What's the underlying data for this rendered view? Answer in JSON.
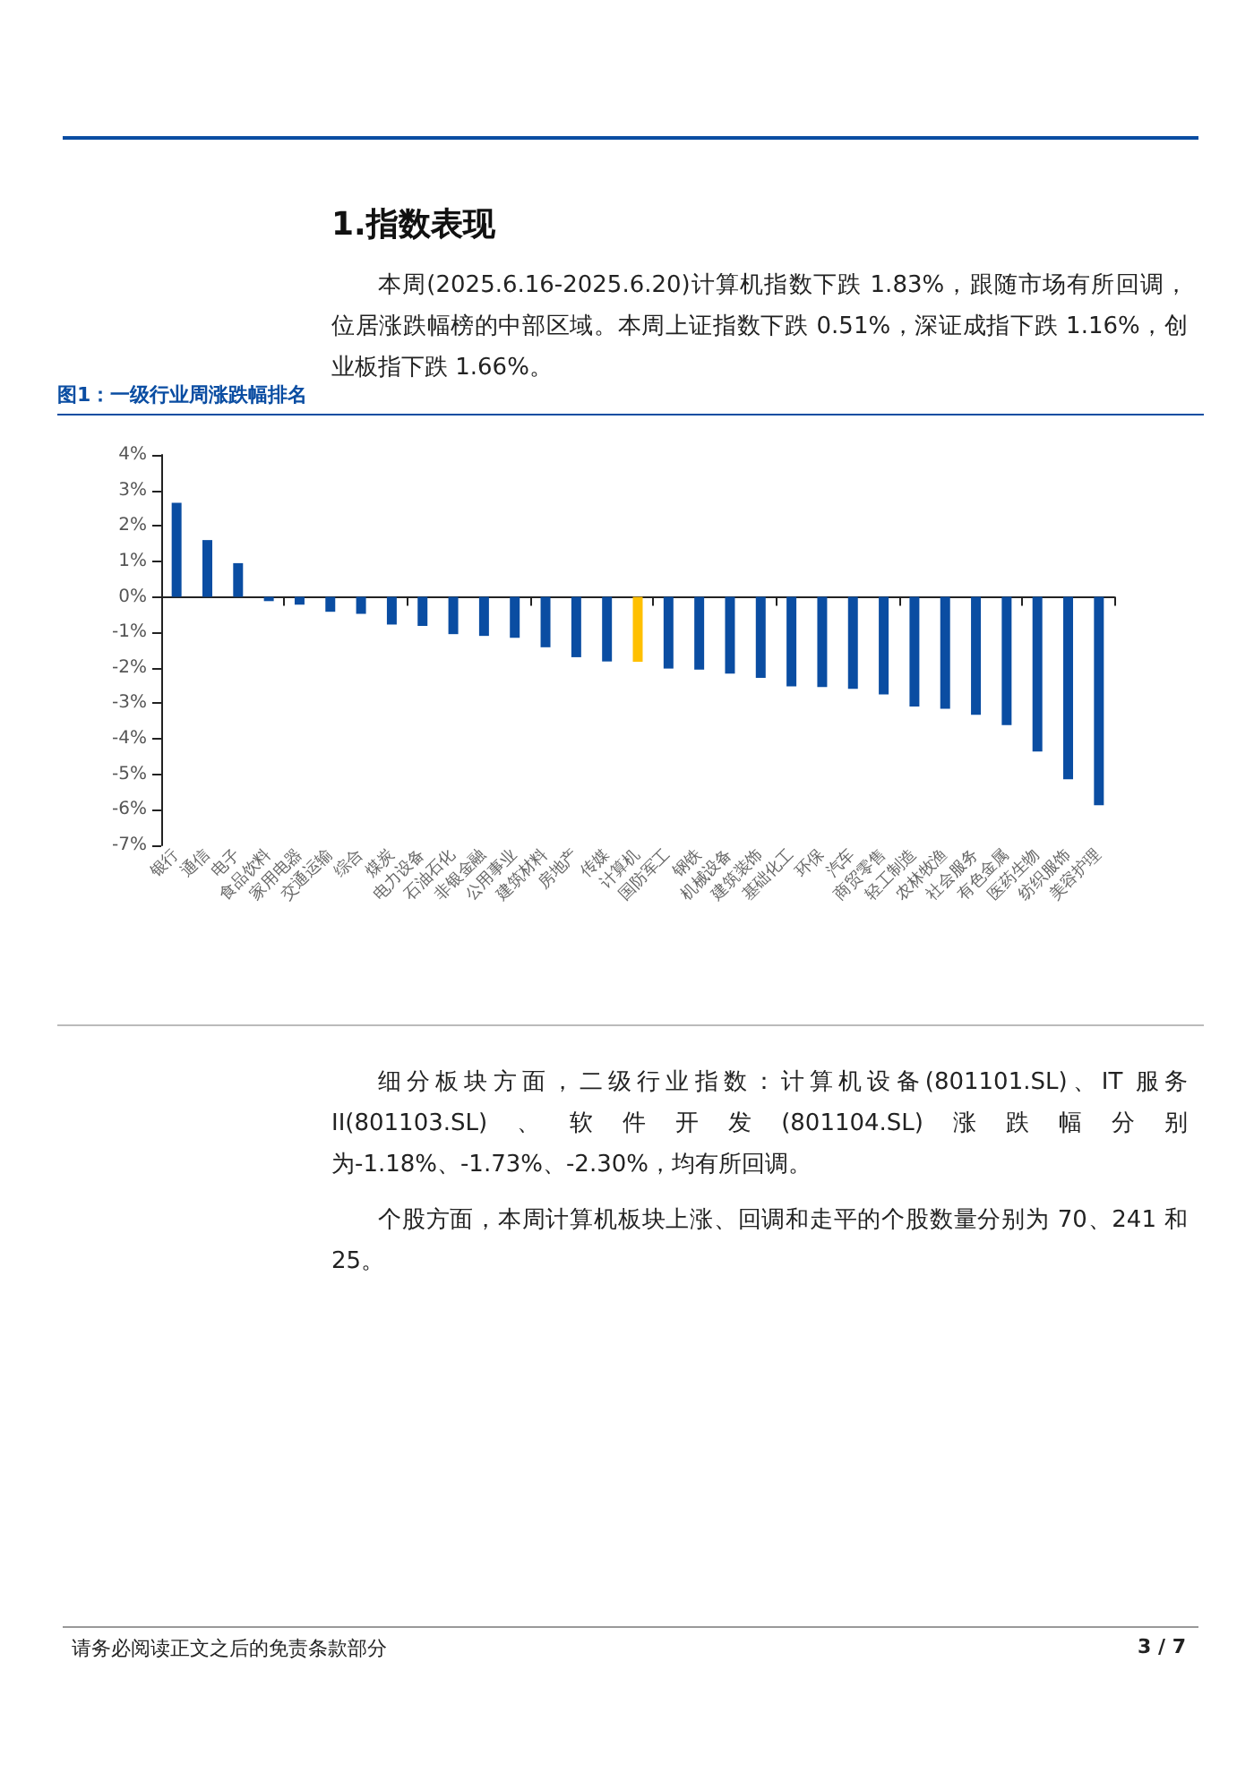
{
  "chart_data": {
    "type": "bar",
    "title": "图1：一级行业周涨跌幅排名",
    "annotations": [
      "1.指数表现",
      "本周(2025.6.16-2025.6.20)计算机指数下跌 1.83%，跟随市场有所回调，位居涨跌幅榜的中部区域。本周上证指数下跌 0.51%，深证成指下跌 1.16%，创业板指下跌 1.66%。",
      "细分板块方面，二级行业指数：计算机设备(801101.SL)、IT 服务 II(801103.SL)、软件开发(801104.SL)涨跌幅分别为-1.18%、-1.73%、-2.30%，均有所回调。",
      "个股方面，本周计算机板块上涨、回调和走平的个股数量分别为 70、241 和 25。",
      "请务必阅读正文之后的免责条款部分",
      "3 / 7"
    ],
    "categories": [
      "银行",
      "通信",
      "电子",
      "食品饮料",
      "家用电器",
      "交通运输",
      "综合",
      "煤炭",
      "电力设备",
      "石油石化",
      "非银金融",
      "公用事业",
      "建筑材料",
      "房地产",
      "传媒",
      "计算机",
      "国防军工",
      "钢铁",
      "机械设备",
      "建筑装饰",
      "基础化工",
      "环保",
      "汽车",
      "商贸零售",
      "轻工制造",
      "农林牧渔",
      "社会服务",
      "有色金属",
      "医药生物",
      "纺织服饰",
      "美容护理"
    ],
    "values": [
      2.65,
      1.6,
      0.95,
      -0.12,
      -0.22,
      -0.42,
      -0.48,
      -0.78,
      -0.82,
      -1.05,
      -1.1,
      -1.15,
      -1.42,
      -1.7,
      -1.82,
      -1.83,
      -2.02,
      -2.05,
      -2.16,
      -2.28,
      -2.52,
      -2.54,
      -2.59,
      -2.75,
      -3.09,
      -3.15,
      -3.32,
      -3.61,
      -4.36,
      -5.14,
      -5.87
    ],
    "colors": [
      "#0a4da2",
      "#0a4da2",
      "#0a4da2",
      "#0a4da2",
      "#0a4da2",
      "#0a4da2",
      "#0a4da2",
      "#0a4da2",
      "#0a4da2",
      "#0a4da2",
      "#0a4da2",
      "#0a4da2",
      "#0a4da2",
      "#0a4da2",
      "#0a4da2",
      "#ffc000",
      "#0a4da2",
      "#0a4da2",
      "#0a4da2",
      "#0a4da2",
      "#0a4da2",
      "#0a4da2",
      "#0a4da2",
      "#0a4da2",
      "#0a4da2",
      "#0a4da2",
      "#0a4da2",
      "#0a4da2",
      "#0a4da2",
      "#0a4da2",
      "#0a4da2"
    ],
    "ylim": [
      -7,
      4
    ],
    "yticks": [
      {
        "value": -7,
        "label": "-7%"
      },
      {
        "value": -6,
        "label": "-6%"
      },
      {
        "value": -5,
        "label": "-5%"
      },
      {
        "value": -4,
        "label": "-4%"
      },
      {
        "value": -3,
        "label": "-3%"
      },
      {
        "value": -2,
        "label": "-2%"
      },
      {
        "value": -1,
        "label": "-1%"
      },
      {
        "value": 0,
        "label": "0%"
      },
      {
        "value": 1,
        "label": "1%"
      },
      {
        "value": 2,
        "label": "2%"
      },
      {
        "value": 3,
        "label": "3%"
      },
      {
        "value": 4,
        "label": "4%"
      }
    ]
  }
}
